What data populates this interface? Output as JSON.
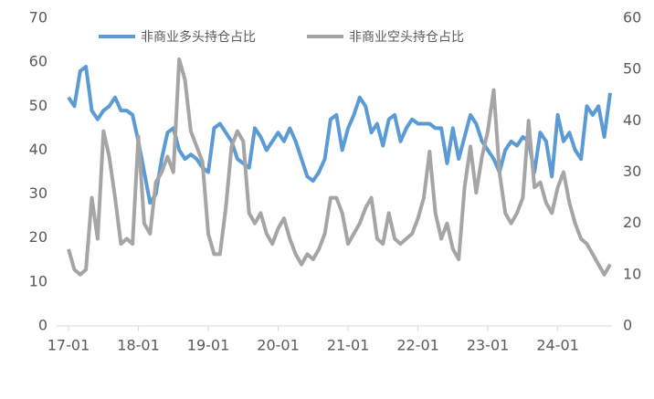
{
  "chart_data": {
    "type": "line",
    "categories": [
      "17-01",
      null,
      null,
      null,
      null,
      null,
      null,
      null,
      null,
      null,
      null,
      null,
      "18-01",
      null,
      null,
      null,
      null,
      null,
      null,
      null,
      null,
      null,
      null,
      null,
      "19-01",
      null,
      null,
      null,
      null,
      null,
      null,
      null,
      null,
      null,
      null,
      null,
      "20-01",
      null,
      null,
      null,
      null,
      null,
      null,
      null,
      null,
      null,
      null,
      null,
      "21-01",
      null,
      null,
      null,
      null,
      null,
      null,
      null,
      null,
      null,
      null,
      null,
      "22-01",
      null,
      null,
      null,
      null,
      null,
      null,
      null,
      null,
      null,
      null,
      null,
      "23-01",
      null,
      null,
      null,
      null,
      null,
      null,
      null,
      null,
      null,
      null,
      null,
      "24-01",
      null,
      null,
      null,
      null,
      null,
      null,
      null,
      null,
      null
    ],
    "series": [
      {
        "name": "非商业多头持仓占比",
        "color": "#5b9bd5",
        "axis": "y",
        "values": [
          52,
          50,
          58,
          59,
          49,
          47,
          49,
          50,
          52,
          49,
          49,
          48,
          42,
          35,
          28,
          30,
          38,
          44,
          45,
          40,
          38,
          39,
          38,
          36,
          35,
          45,
          46,
          44,
          42,
          38,
          37,
          36,
          45,
          43,
          40,
          42,
          44,
          42,
          45,
          42,
          38,
          34,
          33,
          35,
          38,
          47,
          48,
          40,
          45,
          48,
          52,
          50,
          44,
          46,
          41,
          47,
          48,
          42,
          45,
          47,
          46,
          46,
          46,
          45,
          45,
          37,
          45,
          38,
          43,
          48,
          46,
          42,
          40,
          38,
          35,
          40,
          42,
          41,
          43,
          42,
          35,
          44,
          42,
          34,
          48,
          42,
          44,
          40,
          38,
          50,
          48,
          50,
          43,
          53
        ]
      },
      {
        "name": "非商业空头持仓占比",
        "color": "#a5a5a5",
        "axis": "y2",
        "values": [
          15,
          11,
          10,
          11,
          25,
          17,
          38,
          33,
          25,
          16,
          17,
          16,
          37,
          20,
          18,
          28,
          30,
          33,
          30,
          52,
          48,
          38,
          35,
          32,
          18,
          14,
          14,
          23,
          35,
          38,
          36,
          22,
          20,
          22,
          18,
          16,
          19,
          21,
          17,
          14,
          12,
          14,
          13,
          15,
          18,
          25,
          25,
          22,
          16,
          18,
          20,
          23,
          25,
          17,
          16,
          22,
          17,
          16,
          17,
          18,
          21,
          25,
          34,
          22,
          17,
          20,
          15,
          13,
          27,
          35,
          26,
          33,
          38,
          46,
          30,
          22,
          20,
          22,
          25,
          40,
          27,
          28,
          24,
          22,
          27,
          30,
          24,
          20,
          17,
          16,
          14,
          12,
          10,
          12
        ]
      }
    ],
    "ylim": [
      0,
      70
    ],
    "yticks": [
      0,
      10,
      20,
      30,
      40,
      50,
      60,
      70
    ],
    "y2lim": [
      0,
      60
    ],
    "y2ticks": [
      0,
      10,
      20,
      30,
      40,
      50,
      60
    ],
    "legend": "top"
  }
}
